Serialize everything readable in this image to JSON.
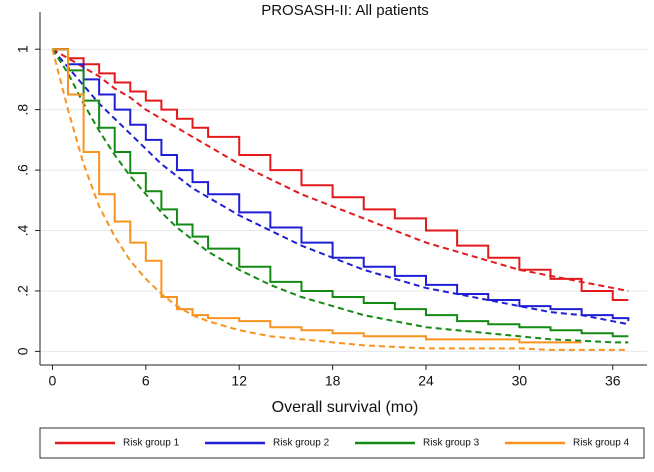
{
  "chart_data": {
    "type": "survival",
    "title": "PROSASH-II: All patients",
    "x_label": "Overall survival (mo)",
    "x": [
      0,
      1,
      2,
      3,
      4,
      5,
      6,
      7,
      8,
      9,
      10,
      12,
      14,
      16,
      18,
      20,
      22,
      24,
      26,
      28,
      30,
      32,
      34,
      36,
      37
    ],
    "series": [
      {
        "name": "Risk group 1",
        "color": "#e31a1c",
        "values": [
          1,
          0.97,
          0.95,
          0.92,
          0.89,
          0.86,
          0.83,
          0.8,
          0.77,
          0.74,
          0.71,
          0.65,
          0.6,
          0.55,
          0.51,
          0.47,
          0.44,
          0.4,
          0.35,
          0.31,
          0.27,
          0.24,
          0.2,
          0.17,
          0.17
        ],
        "fit": [
          1,
          0.97,
          0.94,
          0.91,
          0.87,
          0.84,
          0.8,
          0.77,
          0.74,
          0.71,
          0.68,
          0.62,
          0.57,
          0.52,
          0.48,
          0.44,
          0.4,
          0.36,
          0.33,
          0.3,
          0.27,
          0.25,
          0.23,
          0.21,
          0.2
        ]
      },
      {
        "name": "Risk group 2",
        "color": "#1f1fd6",
        "values": [
          1,
          0.95,
          0.9,
          0.85,
          0.8,
          0.75,
          0.7,
          0.65,
          0.6,
          0.56,
          0.52,
          0.46,
          0.41,
          0.36,
          0.31,
          0.28,
          0.25,
          0.22,
          0.19,
          0.17,
          0.15,
          0.14,
          0.12,
          0.11,
          0.1
        ],
        "fit": [
          1,
          0.94,
          0.88,
          0.82,
          0.77,
          0.72,
          0.67,
          0.62,
          0.58,
          0.54,
          0.51,
          0.45,
          0.4,
          0.35,
          0.31,
          0.27,
          0.24,
          0.21,
          0.19,
          0.17,
          0.15,
          0.13,
          0.12,
          0.1,
          0.09
        ]
      },
      {
        "name": "Risk group 3",
        "color": "#138a13",
        "values": [
          1,
          0.93,
          0.83,
          0.74,
          0.66,
          0.59,
          0.53,
          0.47,
          0.42,
          0.38,
          0.34,
          0.28,
          0.23,
          0.2,
          0.18,
          0.16,
          0.14,
          0.12,
          0.1,
          0.09,
          0.08,
          0.07,
          0.06,
          0.05,
          0.05
        ],
        "fit": [
          1,
          0.92,
          0.82,
          0.73,
          0.65,
          0.58,
          0.52,
          0.46,
          0.41,
          0.37,
          0.33,
          0.27,
          0.22,
          0.18,
          0.15,
          0.12,
          0.1,
          0.08,
          0.07,
          0.06,
          0.05,
          0.04,
          0.035,
          0.03,
          0.03
        ]
      },
      {
        "name": "Risk group 4",
        "color": "#f7931e",
        "values": [
          1,
          0.85,
          0.66,
          0.52,
          0.43,
          0.36,
          0.3,
          0.18,
          0.14,
          0.12,
          0.11,
          0.1,
          0.08,
          0.07,
          0.06,
          0.05,
          0.05,
          0.04,
          0.04,
          0.04,
          0.03,
          0.03,
          0.03,
          null,
          null
        ],
        "fit": [
          1,
          0.8,
          0.62,
          0.48,
          0.38,
          0.3,
          0.24,
          0.19,
          0.15,
          0.12,
          0.1,
          0.07,
          0.05,
          0.04,
          0.03,
          0.02,
          0.015,
          0.01,
          0.01,
          0.01,
          0.01,
          0.005,
          0.005,
          0.005,
          0.005
        ]
      }
    ],
    "xlim": [
      -0.8,
      38.2
    ],
    "ylim": [
      -0.045,
      1.09
    ],
    "xticks": [
      0,
      6,
      12,
      18,
      24,
      30,
      36
    ],
    "yticks": [
      0,
      {
        "value": 0.2,
        "label": ".2"
      },
      {
        "value": 0.4,
        "label": ".4"
      },
      {
        "value": 0.6,
        "label": ".6"
      },
      {
        "value": 0.8,
        "label": ".8"
      },
      1
    ],
    "grid": true,
    "legend": "bottom"
  }
}
